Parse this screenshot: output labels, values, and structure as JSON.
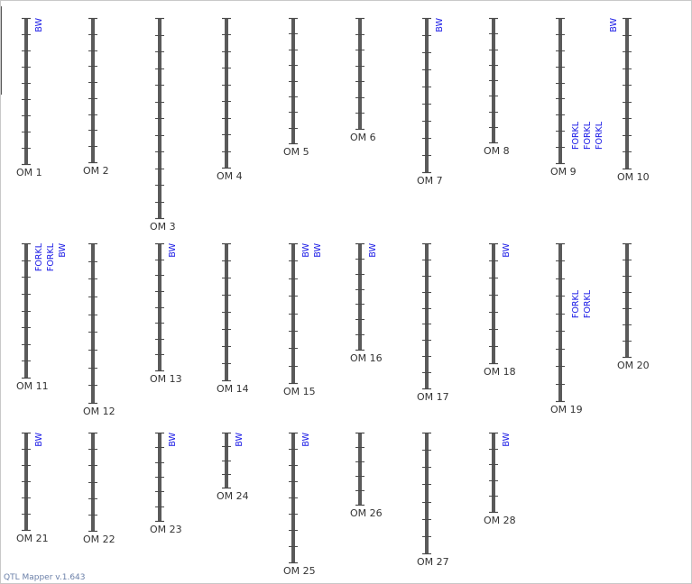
{
  "app": {
    "footer": "QTL Mapper v.1.643"
  },
  "chromosomes": [
    {
      "label": "OM 1",
      "tick_count": 8,
      "qtls": [
        "BW"
      ]
    },
    {
      "label": "OM 2",
      "tick_count": 8,
      "qtls": []
    },
    {
      "label": "OM 3",
      "tick_count": 11,
      "qtls": []
    },
    {
      "label": "OM 4",
      "tick_count": 8,
      "qtls": []
    },
    {
      "label": "OM 5",
      "tick_count": 7,
      "qtls": []
    },
    {
      "label": "OM 6",
      "tick_count": 6,
      "qtls": []
    },
    {
      "label": "OM 7",
      "tick_count": 8,
      "qtls": [
        "BW"
      ]
    },
    {
      "label": "OM 8",
      "tick_count": 7,
      "qtls": []
    },
    {
      "label": "OM 9",
      "tick_count": 8,
      "qtls": [
        "FORKL",
        "FORKL",
        "FORKL"
      ]
    },
    {
      "label": "OM 10",
      "tick_count": 8,
      "qtls": [
        "BW"
      ]
    },
    {
      "label": "OM 11",
      "tick_count": 7,
      "qtls": [
        "FORKL",
        "FORKL",
        "BW"
      ]
    },
    {
      "label": "OM 12",
      "tick_count": 8,
      "qtls": []
    },
    {
      "label": "OM 13",
      "tick_count": 7,
      "qtls": [
        "BW"
      ]
    },
    {
      "label": "OM 14",
      "tick_count": 7,
      "qtls": []
    },
    {
      "label": "OM 15",
      "tick_count": 7,
      "qtls": [
        "BW",
        "BW"
      ]
    },
    {
      "label": "OM 16",
      "tick_count": 6,
      "qtls": [
        "BW"
      ]
    },
    {
      "label": "OM 17",
      "tick_count": 8,
      "qtls": []
    },
    {
      "label": "OM 18",
      "tick_count": 6,
      "qtls": [
        "BW"
      ]
    },
    {
      "label": "OM 19",
      "tick_count": 8,
      "qtls": [
        "FORKL",
        "FORKL"
      ]
    },
    {
      "label": "OM 20",
      "tick_count": 6,
      "qtls": []
    },
    {
      "label": "OM 21",
      "tick_count": 5,
      "qtls": [
        "BW"
      ]
    },
    {
      "label": "OM 22",
      "tick_count": 5,
      "qtls": []
    },
    {
      "label": "OM 23",
      "tick_count": 5,
      "qtls": [
        "BW"
      ]
    },
    {
      "label": "OM 24",
      "tick_count": 3,
      "qtls": [
        "BW"
      ]
    },
    {
      "label": "OM 25",
      "tick_count": 7,
      "qtls": [
        "BW"
      ]
    },
    {
      "label": "OM 26",
      "tick_count": 4,
      "qtls": []
    },
    {
      "label": "OM 27",
      "tick_count": 6,
      "qtls": []
    },
    {
      "label": "OM 28",
      "tick_count": 4,
      "qtls": [
        "BW"
      ]
    }
  ]
}
